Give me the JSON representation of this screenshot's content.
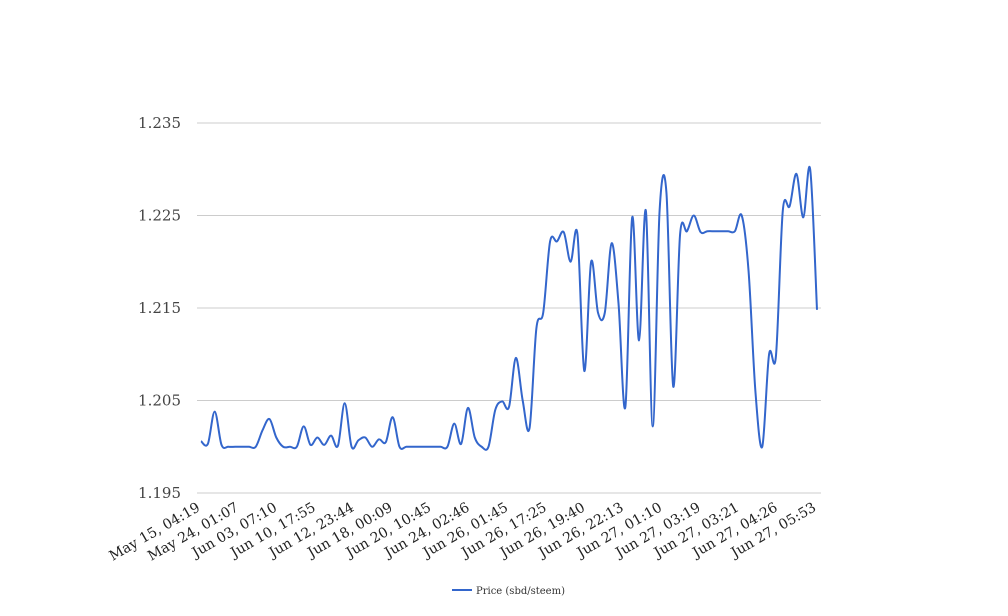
{
  "chart_data": {
    "type": "line",
    "title": "",
    "xlabel": "",
    "ylabel": "",
    "ylim": [
      1.195,
      1.235
    ],
    "yticks": [
      "1.235",
      "1.225",
      "1.215",
      "1.205",
      "1.195"
    ],
    "grid": true,
    "legend_position": "bottom",
    "x_tick_labels": [
      "May 15, 04:19",
      "May 24, 01:07",
      "Jun 03, 07:10",
      "Jun 10, 17:55",
      "Jun 12, 23:44",
      "Jun 18, 00:09",
      "Jun 20, 10:45",
      "Jun 24, 02:46",
      "Jun 26, 01:45",
      "Jun 26, 17:25",
      "Jun 26, 19:40",
      "Jun 26, 22:13",
      "Jun 27, 01:10",
      "Jun 27, 03:19",
      "Jun 27, 03:21",
      "Jun 27, 04:26",
      "Jun 27, 05:53"
    ],
    "series": [
      {
        "name": "Price (sbd/steem)",
        "color": "#3366cc",
        "values": [
          1.2006,
          1.2003,
          1.2038,
          1.2002,
          1.2,
          1.2,
          1.2,
          1.2,
          1.2,
          1.2018,
          1.203,
          1.201,
          1.2,
          1.2,
          1.2,
          1.2022,
          1.2002,
          1.201,
          1.2002,
          1.2012,
          1.2001,
          1.2047,
          1.2,
          1.2007,
          1.201,
          1.2,
          1.2008,
          1.2005,
          1.2032,
          1.2,
          1.2,
          1.2,
          1.2,
          1.2,
          1.2,
          1.2,
          1.2,
          1.2025,
          1.2003,
          1.2042,
          1.201,
          1.2,
          1.2,
          1.204,
          1.2049,
          1.2043,
          1.2096,
          1.205,
          1.202,
          1.2128,
          1.2145,
          1.2222,
          1.2222,
          1.2232,
          1.22,
          1.223,
          1.2082,
          1.22,
          1.2145,
          1.2145,
          1.222,
          1.2155,
          1.2043,
          1.2248,
          1.2115,
          1.2255,
          1.2022,
          1.2255,
          1.2275,
          1.2065,
          1.223,
          1.2233,
          1.225,
          1.2232,
          1.2233,
          1.2233,
          1.2233,
          1.2233,
          1.2233,
          1.225,
          1.219,
          1.206,
          1.2,
          1.21,
          1.2098,
          1.2255,
          1.226,
          1.2295,
          1.2248,
          1.23,
          1.2148
        ]
      }
    ]
  }
}
